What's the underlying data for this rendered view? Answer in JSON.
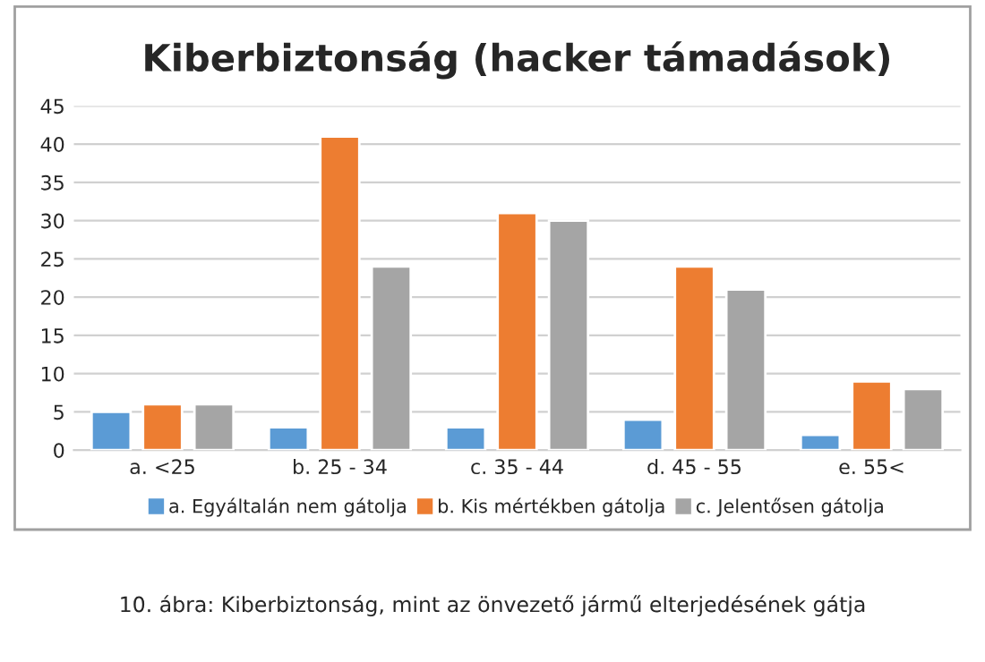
{
  "chart_data": {
    "type": "bar",
    "title": "Kiberbiztonság (hacker támadások)",
    "categories": [
      "a. <25",
      "b. 25 - 34",
      "c. 35 - 44",
      "d. 45 - 55",
      "e. 55<"
    ],
    "series": [
      {
        "name": "a. Egyáltalán nem gátolja",
        "color": "#5b9bd5",
        "values": [
          5,
          3,
          3,
          4,
          2
        ]
      },
      {
        "name": "b. Kis mértékben gátolja",
        "color": "#ed7d31",
        "values": [
          6,
          41,
          31,
          24,
          9
        ]
      },
      {
        "name": "c. Jelentősen gátolja",
        "color": "#a5a5a5",
        "values": [
          6,
          24,
          30,
          21,
          8
        ]
      }
    ],
    "ylim": [
      0,
      45
    ],
    "yticks": [
      0,
      5,
      10,
      15,
      20,
      25,
      30,
      35,
      40,
      45
    ],
    "grid": "y",
    "legend": "bottom",
    "annotations": [
      "10. ábra: Kiberbiztonság, mint az önvezető jármű elterjedésének gátja"
    ]
  }
}
